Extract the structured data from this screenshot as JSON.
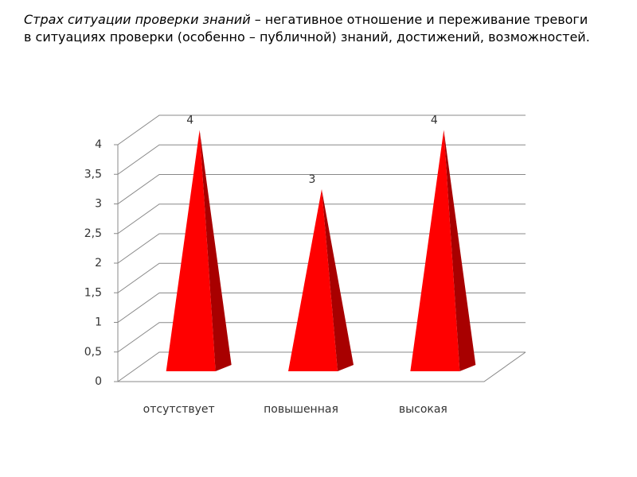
{
  "chart_data": {
    "type": "pyramid",
    "title": "Страх ситуации проверки знаний",
    "description": "– негативное отношение и переживание тревоги в ситуациях проверки (особенно – публичной) знаний, достижений, возможностей.",
    "categories": [
      "отсутствует",
      "повышенная",
      "высокая"
    ],
    "values": [
      4,
      3,
      4
    ],
    "color": "#ff0000",
    "ylim": [
      0,
      4
    ],
    "yticks": [
      0,
      {
        "value": 0.5,
        "label": "0,5"
      },
      1,
      {
        "value": 1.5,
        "label": "1,5"
      },
      2,
      {
        "value": 2.5,
        "label": "2,5"
      },
      3,
      {
        "value": 3.5,
        "label": "3,5"
      },
      4
    ],
    "grid": true
  }
}
